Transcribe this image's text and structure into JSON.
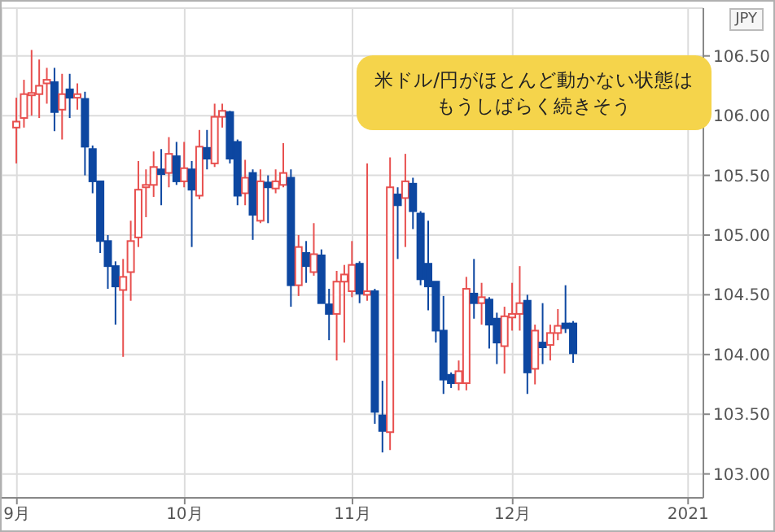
{
  "chart_data": {
    "type": "candlestick",
    "ylabel": "JPY",
    "annotations": [
      "米ドル/円がほとんど動かない状態はもうしばらく続きそう"
    ],
    "categories": [
      "9月",
      null,
      null,
      null,
      null,
      null,
      null,
      null,
      null,
      null,
      null,
      null,
      null,
      null,
      null,
      null,
      null,
      null,
      null,
      null,
      null,
      null,
      "10月",
      null,
      null,
      null,
      null,
      null,
      null,
      null,
      null,
      null,
      null,
      null,
      null,
      null,
      null,
      null,
      null,
      null,
      null,
      null,
      null,
      null,
      "11月",
      null,
      null,
      null,
      null,
      null,
      null,
      null,
      null,
      null,
      null,
      null,
      null,
      null,
      null,
      null,
      null,
      null,
      null,
      null,
      null,
      "12月",
      null,
      null,
      null,
      null,
      null,
      null,
      null,
      null,
      null,
      null,
      null,
      null,
      null,
      null,
      null,
      null,
      null,
      null,
      null,
      null,
      null,
      null,
      "2021"
    ],
    "ohlc": [
      [
        105.9,
        106.15,
        105.6,
        105.95
      ],
      [
        105.98,
        106.3,
        105.9,
        106.18
      ],
      [
        106.17,
        106.55,
        106.0,
        106.19
      ],
      [
        106.18,
        106.47,
        105.98,
        106.25
      ],
      [
        106.27,
        106.4,
        106.1,
        106.3
      ],
      [
        106.28,
        106.4,
        105.87,
        106.03
      ],
      [
        106.05,
        106.35,
        105.8,
        106.18
      ],
      [
        106.22,
        106.35,
        105.98,
        106.15
      ],
      [
        106.15,
        106.27,
        106.05,
        106.18
      ],
      [
        106.14,
        106.2,
        105.5,
        105.74
      ],
      [
        105.72,
        105.75,
        105.35,
        105.45
      ],
      [
        105.45,
        105.45,
        104.85,
        104.95
      ],
      [
        104.95,
        105.0,
        104.55,
        104.74
      ],
      [
        104.74,
        104.78,
        104.25,
        104.57
      ],
      [
        104.54,
        104.8,
        103.98,
        104.65
      ],
      [
        104.69,
        105.12,
        104.45,
        104.95
      ],
      [
        104.98,
        105.62,
        104.9,
        105.38
      ],
      [
        105.4,
        105.55,
        105.15,
        105.42
      ],
      [
        105.42,
        105.7,
        105.32,
        105.57
      ],
      [
        105.55,
        105.72,
        105.25,
        105.51
      ],
      [
        105.52,
        105.82,
        105.4,
        105.68
      ],
      [
        105.66,
        105.78,
        105.42,
        105.45
      ],
      [
        105.45,
        105.78,
        105.4,
        105.56
      ],
      [
        105.55,
        105.62,
        104.9,
        105.38
      ],
      [
        105.33,
        105.88,
        105.3,
        105.74
      ],
      [
        105.73,
        105.88,
        105.55,
        105.64
      ],
      [
        105.6,
        106.1,
        105.57,
        105.99
      ],
      [
        105.99,
        106.1,
        105.9,
        106.04
      ],
      [
        106.03,
        106.04,
        105.6,
        105.64
      ],
      [
        105.78,
        105.8,
        105.25,
        105.33
      ],
      [
        105.35,
        105.63,
        105.25,
        105.48
      ],
      [
        105.52,
        105.55,
        104.96,
        105.17
      ],
      [
        105.12,
        105.55,
        105.1,
        105.45
      ],
      [
        105.44,
        105.5,
        105.1,
        105.4
      ],
      [
        105.39,
        105.55,
        105.35,
        105.45
      ],
      [
        105.42,
        105.77,
        105.4,
        105.52
      ],
      [
        105.48,
        105.55,
        104.4,
        104.58
      ],
      [
        104.58,
        105.0,
        104.49,
        104.9
      ],
      [
        104.85,
        104.95,
        104.6,
        104.74
      ],
      [
        104.69,
        105.1,
        104.66,
        104.84
      ],
      [
        104.83,
        104.88,
        104.43,
        104.43
      ],
      [
        104.42,
        104.55,
        104.12,
        104.34
      ],
      [
        104.34,
        104.7,
        103.95,
        104.61
      ],
      [
        104.61,
        104.75,
        104.1,
        104.67
      ],
      [
        104.53,
        104.95,
        104.48,
        104.75
      ],
      [
        104.76,
        104.78,
        104.43,
        104.51
      ],
      [
        104.5,
        105.6,
        104.45,
        104.53
      ],
      [
        104.53,
        104.55,
        103.42,
        103.52
      ],
      [
        103.49,
        103.78,
        103.18,
        103.36
      ],
      [
        103.35,
        105.65,
        103.2,
        105.4
      ],
      [
        105.34,
        105.4,
        104.8,
        105.25
      ],
      [
        105.31,
        105.68,
        104.9,
        105.45
      ],
      [
        105.43,
        105.48,
        105.05,
        105.2
      ],
      [
        105.18,
        105.2,
        104.58,
        104.63
      ],
      [
        104.76,
        105.12,
        104.37,
        104.57
      ],
      [
        104.61,
        104.61,
        104.1,
        104.2
      ],
      [
        104.2,
        104.49,
        103.67,
        103.79
      ],
      [
        103.83,
        103.85,
        103.72,
        103.76
      ],
      [
        103.76,
        103.95,
        103.7,
        103.86
      ],
      [
        103.76,
        104.65,
        103.7,
        104.55
      ],
      [
        104.51,
        104.8,
        104.3,
        104.43
      ],
      [
        104.43,
        104.6,
        104.25,
        104.48
      ],
      [
        104.46,
        104.48,
        104.05,
        104.25
      ],
      [
        104.3,
        104.35,
        103.92,
        104.1
      ],
      [
        104.07,
        104.4,
        103.84,
        104.32
      ],
      [
        104.31,
        104.6,
        104.2,
        104.34
      ],
      [
        104.34,
        104.74,
        104.2,
        104.43
      ],
      [
        104.45,
        104.5,
        103.67,
        103.85
      ],
      [
        103.88,
        104.25,
        103.75,
        104.2
      ],
      [
        104.1,
        104.43,
        103.92,
        104.06
      ],
      [
        104.08,
        104.25,
        103.95,
        104.18
      ],
      [
        104.18,
        104.38,
        104.12,
        104.24
      ],
      [
        104.26,
        104.58,
        104.18,
        104.22
      ],
      [
        104.26,
        104.28,
        103.93,
        104.01
      ],
      null,
      null,
      null,
      null,
      null,
      null,
      null,
      null,
      null,
      null,
      null,
      null,
      null,
      null,
      null
    ],
    "colors": [
      "#e8504f",
      "#e8504f",
      "#e8504f",
      "#e8504f",
      "#e8504f",
      "#0d47a1",
      "#e8504f",
      "#0d47a1",
      "#e8504f",
      "#0d47a1",
      "#0d47a1",
      "#0d47a1",
      "#0d47a1",
      "#0d47a1",
      "#e8504f",
      "#e8504f",
      "#e8504f",
      "#e8504f",
      "#e8504f",
      "#0d47a1",
      "#e8504f",
      "#0d47a1",
      "#e8504f",
      "#0d47a1",
      "#e8504f",
      "#0d47a1",
      "#e8504f",
      "#e8504f",
      "#0d47a1",
      "#0d47a1",
      "#e8504f",
      "#0d47a1",
      "#e8504f",
      "#0d47a1",
      "#e8504f",
      "#e8504f",
      "#0d47a1",
      "#e8504f",
      "#0d47a1",
      "#e8504f",
      "#0d47a1",
      "#0d47a1",
      "#e8504f",
      "#e8504f",
      "#e8504f",
      "#0d47a1",
      "#e8504f",
      "#0d47a1",
      "#0d47a1",
      "#e8504f",
      "#0d47a1",
      "#e8504f",
      "#0d47a1",
      "#0d47a1",
      "#0d47a1",
      "#0d47a1",
      "#0d47a1",
      "#0d47a1",
      "#e8504f",
      "#e8504f",
      "#0d47a1",
      "#e8504f",
      "#0d47a1",
      "#0d47a1",
      "#e8504f",
      "#e8504f",
      "#e8504f",
      "#0d47a1",
      "#e8504f",
      "#0d47a1",
      "#e8504f",
      "#e8504f",
      "#0d47a1",
      "#0d47a1",
      null,
      null,
      null,
      null,
      null,
      null,
      null,
      null,
      null,
      null,
      null,
      null,
      null,
      null,
      null
    ],
    "ylim": [
      102.8,
      106.9
    ],
    "yticks": [
      {
        "value": 103,
        "label": "103.00"
      },
      {
        "value": 103.5,
        "label": "103.50"
      },
      {
        "value": 104,
        "label": "104.00"
      },
      {
        "value": 104.5,
        "label": "104.50"
      },
      {
        "value": 105,
        "label": "105.00"
      },
      {
        "value": 105.5,
        "label": "105.50"
      },
      {
        "value": 106,
        "label": "106.00"
      },
      {
        "value": 106.5,
        "label": "106.50"
      }
    ],
    "grid": true
  }
}
